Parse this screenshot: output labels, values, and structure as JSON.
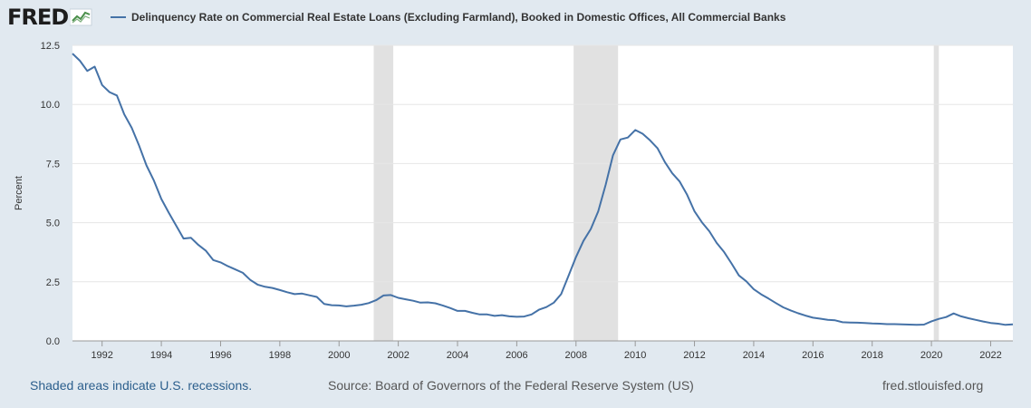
{
  "header": {
    "logo_text": "FRED",
    "logo_icon": "chart-line-icon",
    "series_title": "Delinquency Rate on Commercial Real Estate Loans (Excluding Farmland), Booked in Domestic Offices, All Commercial Banks"
  },
  "colors": {
    "line": "#4572a7",
    "recession": "#e1e1e1",
    "plot_bg": "#ffffff",
    "page_bg": "#e1e9f0",
    "grid": "#e6e6e6"
  },
  "chart_data": {
    "type": "line",
    "title": "Delinquency Rate on Commercial Real Estate Loans (Excluding Farmland), Booked in Domestic Offices, All Commercial Banks",
    "xlabel": "",
    "ylabel": "Percent",
    "xlim": [
      1991.0,
      2022.75
    ],
    "ylim": [
      0,
      12.5
    ],
    "grid": true,
    "legend": "top-left",
    "y_ticks": [
      {
        "value": 0.0,
        "label": "0.0"
      },
      {
        "value": 2.5,
        "label": "2.5"
      },
      {
        "value": 5.0,
        "label": "5.0"
      },
      {
        "value": 7.5,
        "label": "7.5"
      },
      {
        "value": 10.0,
        "label": "10.0"
      },
      {
        "value": 12.5,
        "label": "12.5"
      }
    ],
    "x_ticks": [
      {
        "value": 1992,
        "label": "1992"
      },
      {
        "value": 1994,
        "label": "1994"
      },
      {
        "value": 1996,
        "label": "1996"
      },
      {
        "value": 1998,
        "label": "1998"
      },
      {
        "value": 2000,
        "label": "2000"
      },
      {
        "value": 2002,
        "label": "2002"
      },
      {
        "value": 2004,
        "label": "2004"
      },
      {
        "value": 2006,
        "label": "2006"
      },
      {
        "value": 2008,
        "label": "2008"
      },
      {
        "value": 2010,
        "label": "2010"
      },
      {
        "value": 2012,
        "label": "2012"
      },
      {
        "value": 2014,
        "label": "2014"
      },
      {
        "value": 2016,
        "label": "2016"
      },
      {
        "value": 2018,
        "label": "2018"
      },
      {
        "value": 2020,
        "label": "2020"
      },
      {
        "value": 2022,
        "label": "2022"
      }
    ],
    "recessions": [
      [
        2001.17,
        2001.83
      ],
      [
        2007.92,
        2009.42
      ],
      [
        2020.08,
        2020.25
      ]
    ],
    "series": [
      {
        "x": [
          1991.0,
          1991.25,
          1991.5,
          1991.75,
          1992.0,
          1992.25,
          1992.5,
          1992.75,
          1993.0,
          1993.25,
          1993.5,
          1993.75,
          1994.0,
          1994.25,
          1994.5,
          1994.75,
          1995.0,
          1995.25,
          1995.5,
          1995.75,
          1996.0,
          1996.25,
          1996.5,
          1996.75,
          1997.0,
          1997.25,
          1997.5,
          1997.75,
          1998.0,
          1998.25,
          1998.5,
          1998.75,
          1999.0,
          1999.25,
          1999.5,
          1999.75,
          2000.0,
          2000.25,
          2000.5,
          2000.75,
          2001.0,
          2001.25,
          2001.5,
          2001.75,
          2002.0,
          2002.25,
          2002.5,
          2002.75,
          2003.0,
          2003.25,
          2003.5,
          2003.75,
          2004.0,
          2004.25,
          2004.5,
          2004.75,
          2005.0,
          2005.25,
          2005.5,
          2005.75,
          2006.0,
          2006.25,
          2006.5,
          2006.75,
          2007.0,
          2007.25,
          2007.5,
          2007.75,
          2008.0,
          2008.25,
          2008.5,
          2008.75,
          2009.0,
          2009.25,
          2009.5,
          2009.75,
          2010.0,
          2010.25,
          2010.5,
          2010.75,
          2011.0,
          2011.25,
          2011.5,
          2011.75,
          2012.0,
          2012.25,
          2012.5,
          2012.75,
          2013.0,
          2013.25,
          2013.5,
          2013.75,
          2014.0,
          2014.25,
          2014.5,
          2014.75,
          2015.0,
          2015.25,
          2015.5,
          2015.75,
          2016.0,
          2016.25,
          2016.5,
          2016.75,
          2017.0,
          2017.25,
          2017.5,
          2017.75,
          2018.0,
          2018.25,
          2018.5,
          2018.75,
          2019.0,
          2019.25,
          2019.5,
          2019.75,
          2020.0,
          2020.25,
          2020.5,
          2020.75,
          2021.0,
          2021.25,
          2021.5,
          2021.75,
          2022.0,
          2022.25,
          2022.5,
          2022.75
        ],
        "y": [
          12.15,
          11.85,
          11.42,
          11.6,
          10.82,
          10.52,
          10.38,
          9.58,
          9.01,
          8.25,
          7.42,
          6.78,
          6.0,
          5.42,
          4.88,
          4.33,
          4.36,
          4.06,
          3.82,
          3.42,
          3.32,
          3.16,
          3.02,
          2.88,
          2.58,
          2.38,
          2.29,
          2.24,
          2.15,
          2.06,
          1.98,
          2.0,
          1.93,
          1.86,
          1.56,
          1.51,
          1.5,
          1.46,
          1.49,
          1.53,
          1.6,
          1.72,
          1.92,
          1.94,
          1.82,
          1.76,
          1.7,
          1.62,
          1.63,
          1.59,
          1.5,
          1.39,
          1.27,
          1.27,
          1.19,
          1.12,
          1.12,
          1.06,
          1.09,
          1.04,
          1.02,
          1.03,
          1.12,
          1.32,
          1.43,
          1.62,
          1.98,
          2.76,
          3.55,
          4.23,
          4.73,
          5.48,
          6.6,
          7.85,
          8.52,
          8.6,
          8.92,
          8.76,
          8.48,
          8.15,
          7.56,
          7.09,
          6.74,
          6.18,
          5.48,
          5.02,
          4.64,
          4.14,
          3.76,
          3.28,
          2.77,
          2.52,
          2.19,
          1.97,
          1.79,
          1.6,
          1.42,
          1.29,
          1.17,
          1.07,
          0.98,
          0.94,
          0.89,
          0.87,
          0.79,
          0.78,
          0.77,
          0.76,
          0.74,
          0.73,
          0.71,
          0.71,
          0.7,
          0.69,
          0.68,
          0.69,
          0.83,
          0.93,
          1.01,
          1.16,
          1.04,
          0.96,
          0.89,
          0.82,
          0.76,
          0.73,
          0.68,
          0.7
        ]
      }
    ]
  },
  "footer": {
    "recession_note": "Shaded areas indicate U.S. recessions.",
    "source": "Source: Board of Governors of the Federal Reserve System (US)",
    "site": "fred.stlouisfed.org"
  }
}
